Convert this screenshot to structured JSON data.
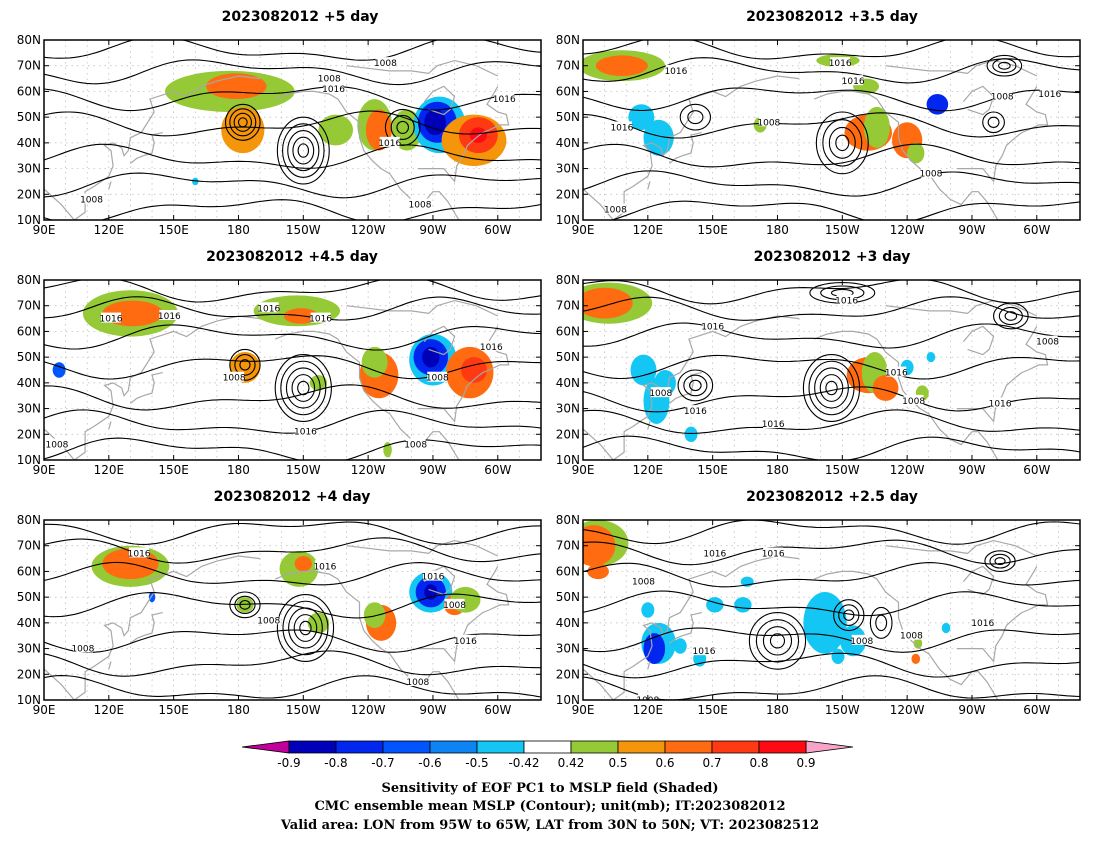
{
  "panels": [
    {
      "title": "2023082012  +5 day",
      "blobs": [
        {
          "c": "pos5",
          "lon": 176,
          "lat": 60,
          "w": 30,
          "h": 8
        },
        {
          "c": "pos7",
          "lon": 179,
          "lat": 62,
          "w": 14,
          "h": 5
        },
        {
          "c": "pos6",
          "lon": 182,
          "lat": 45,
          "w": 10,
          "h": 9
        },
        {
          "c": "pos5",
          "lon": 225,
          "lat": 45,
          "w": 8,
          "h": 6
        },
        {
          "c": "pos5",
          "lon": 243,
          "lat": 47,
          "w": 8,
          "h": 10
        },
        {
          "c": "pos7",
          "lon": 245,
          "lat": 45,
          "w": 6,
          "h": 8
        },
        {
          "c": "pos5",
          "lon": 258,
          "lat": 45,
          "w": 7,
          "h": 8
        },
        {
          "c": "neg5",
          "lon": 273,
          "lat": 47,
          "w": 12,
          "h": 11
        },
        {
          "c": "neg7",
          "lon": 272,
          "lat": 48,
          "w": 9,
          "h": 8
        },
        {
          "c": "neg9",
          "lon": 271,
          "lat": 48,
          "w": 5,
          "h": 5
        },
        {
          "c": "pos6",
          "lon": 289,
          "lat": 41,
          "w": 15,
          "h": 10
        },
        {
          "c": "pos8",
          "lon": 291,
          "lat": 43,
          "w": 9,
          "h": 7
        },
        {
          "c": "pos9",
          "lon": 291,
          "lat": 43,
          "w": 4,
          "h": 3
        },
        {
          "c": "neg5",
          "lon": 160,
          "lat": 25,
          "w": 1.5,
          "h": 1.5
        }
      ],
      "highs": [
        {
          "lon": 182,
          "lat": 48,
          "n": 4,
          "rx": 8,
          "ry": 7
        },
        {
          "lon": 210,
          "lat": 37,
          "n": 5,
          "rx": 12,
          "ry": 13
        },
        {
          "lon": 256,
          "lat": 46,
          "n": 3,
          "rx": 8,
          "ry": 7
        }
      ],
      "labels": [
        {
          "lon": 222,
          "lat": 65,
          "t": "1008"
        },
        {
          "lon": 224,
          "lat": 61,
          "t": "1016"
        },
        {
          "lon": 248,
          "lat": 71,
          "t": "1008"
        },
        {
          "lon": 250,
          "lat": 40,
          "t": "1016"
        },
        {
          "lon": 303,
          "lat": 57,
          "t": "1016"
        },
        {
          "lon": 112,
          "lat": 18,
          "t": "1008"
        },
        {
          "lon": 264,
          "lat": 16,
          "t": "1008"
        }
      ]
    },
    {
      "title": "2023082012  +3.5 day",
      "blobs": [
        {
          "c": "pos5",
          "lon": 108,
          "lat": 70,
          "w": 20,
          "h": 6
        },
        {
          "c": "pos7",
          "lon": 108,
          "lat": 70,
          "w": 12,
          "h": 4
        },
        {
          "c": "pos5",
          "lon": 208,
          "lat": 72,
          "w": 10,
          "h": 2.5
        },
        {
          "c": "neg5",
          "lon": 117,
          "lat": 50,
          "w": 6,
          "h": 5
        },
        {
          "c": "neg5",
          "lon": 125,
          "lat": 42,
          "w": 7,
          "h": 7
        },
        {
          "c": "pos5",
          "lon": 221,
          "lat": 62,
          "w": 6,
          "h": 3
        },
        {
          "c": "pos7",
          "lon": 222,
          "lat": 44,
          "w": 11,
          "h": 7
        },
        {
          "c": "pos5",
          "lon": 226,
          "lat": 46,
          "w": 6,
          "h": 8
        },
        {
          "c": "pos7",
          "lon": 240,
          "lat": 41,
          "w": 7,
          "h": 7
        },
        {
          "c": "pos5",
          "lon": 244,
          "lat": 36,
          "w": 4,
          "h": 4
        },
        {
          "c": "neg7",
          "lon": 254,
          "lat": 55,
          "w": 5,
          "h": 4
        },
        {
          "c": "pos5",
          "lon": 172,
          "lat": 47,
          "w": 3,
          "h": 3
        }
      ],
      "highs": [
        {
          "lon": 142,
          "lat": 50,
          "n": 2,
          "rx": 7,
          "ry": 5
        },
        {
          "lon": 210,
          "lat": 40,
          "n": 4,
          "rx": 12,
          "ry": 12
        },
        {
          "lon": 285,
          "lat": 70,
          "n": 3,
          "rx": 8,
          "ry": 4
        },
        {
          "lon": 280,
          "lat": 48,
          "n": 2,
          "rx": 5,
          "ry": 4
        }
      ],
      "labels": [
        {
          "lon": 133,
          "lat": 68,
          "t": "1016"
        },
        {
          "lon": 209,
          "lat": 71,
          "t": "1016"
        },
        {
          "lon": 215,
          "lat": 64,
          "t": "1016"
        },
        {
          "lon": 176,
          "lat": 48,
          "t": "1008"
        },
        {
          "lon": 108,
          "lat": 46,
          "t": "1016"
        },
        {
          "lon": 284,
          "lat": 58,
          "t": "1008"
        },
        {
          "lon": 306,
          "lat": 59,
          "t": "1016"
        },
        {
          "lon": 251,
          "lat": 28,
          "t": "1008"
        },
        {
          "lon": 105,
          "lat": 14,
          "t": "1008"
        }
      ]
    },
    {
      "title": "2023082012  +4.5 day",
      "blobs": [
        {
          "c": "pos5",
          "lon": 130,
          "lat": 67,
          "w": 22,
          "h": 9
        },
        {
          "c": "pos7",
          "lon": 131,
          "lat": 67,
          "w": 14,
          "h": 5
        },
        {
          "c": "pos5",
          "lon": 207,
          "lat": 68,
          "w": 20,
          "h": 6
        },
        {
          "c": "pos7",
          "lon": 209,
          "lat": 66,
          "w": 8,
          "h": 3
        },
        {
          "c": "pos6",
          "lon": 183,
          "lat": 46,
          "w": 7,
          "h": 6
        },
        {
          "c": "pos5",
          "lon": 217,
          "lat": 40,
          "w": 4,
          "h": 3
        },
        {
          "c": "pos7",
          "lon": 245,
          "lat": 43,
          "w": 9,
          "h": 9
        },
        {
          "c": "pos5",
          "lon": 243,
          "lat": 48,
          "w": 6,
          "h": 6
        },
        {
          "c": "neg5",
          "lon": 270,
          "lat": 49,
          "w": 11,
          "h": 10
        },
        {
          "c": "neg7",
          "lon": 269,
          "lat": 50,
          "w": 8,
          "h": 7
        },
        {
          "c": "neg9",
          "lon": 269,
          "lat": 50,
          "w": 4,
          "h": 4
        },
        {
          "c": "pos7",
          "lon": 287,
          "lat": 44,
          "w": 11,
          "h": 10
        },
        {
          "c": "pos8",
          "lon": 289,
          "lat": 45,
          "w": 6,
          "h": 5
        },
        {
          "c": "neg6",
          "lon": 97,
          "lat": 45,
          "w": 3,
          "h": 3
        },
        {
          "c": "pos5",
          "lon": 249,
          "lat": 14,
          "w": 2,
          "h": 3
        }
      ],
      "highs": [
        {
          "lon": 183,
          "lat": 47,
          "n": 3,
          "rx": 7,
          "ry": 6
        },
        {
          "lon": 210,
          "lat": 38,
          "n": 5,
          "rx": 13,
          "ry": 13
        }
      ],
      "labels": [
        {
          "lon": 148,
          "lat": 66,
          "t": "1016"
        },
        {
          "lon": 121,
          "lat": 65,
          "t": "1016"
        },
        {
          "lon": 194,
          "lat": 69,
          "t": "1016"
        },
        {
          "lon": 218,
          "lat": 65,
          "t": "1016"
        },
        {
          "lon": 178,
          "lat": 42,
          "t": "1008"
        },
        {
          "lon": 272,
          "lat": 42,
          "t": "1008"
        },
        {
          "lon": 297,
          "lat": 54,
          "t": "1016"
        },
        {
          "lon": 211,
          "lat": 21,
          "t": "1016"
        },
        {
          "lon": 262,
          "lat": 16,
          "t": "1008"
        },
        {
          "lon": 96,
          "lat": 16,
          "t": "1008"
        }
      ]
    },
    {
      "title": "2023082012  +3 day",
      "blobs": [
        {
          "c": "pos5",
          "lon": 102,
          "lat": 71,
          "w": 20,
          "h": 8
        },
        {
          "c": "pos7",
          "lon": 100,
          "lat": 71,
          "w": 13,
          "h": 6
        },
        {
          "c": "neg5",
          "lon": 118,
          "lat": 45,
          "w": 6,
          "h": 6
        },
        {
          "c": "neg5",
          "lon": 124,
          "lat": 33,
          "w": 6,
          "h": 9
        },
        {
          "c": "neg5",
          "lon": 128,
          "lat": 40,
          "w": 5,
          "h": 5
        },
        {
          "c": "neg5",
          "lon": 140,
          "lat": 20,
          "w": 3,
          "h": 3
        },
        {
          "c": "pos7",
          "lon": 222,
          "lat": 43,
          "w": 10,
          "h": 7
        },
        {
          "c": "pos5",
          "lon": 225,
          "lat": 44,
          "w": 6,
          "h": 8
        },
        {
          "c": "pos7",
          "lon": 230,
          "lat": 38,
          "w": 6,
          "h": 5
        },
        {
          "c": "neg5",
          "lon": 240,
          "lat": 46,
          "w": 3,
          "h": 3
        },
        {
          "c": "neg5",
          "lon": 251,
          "lat": 50,
          "w": 2,
          "h": 2
        },
        {
          "c": "pos5",
          "lon": 247,
          "lat": 36,
          "w": 3,
          "h": 3
        }
      ],
      "highs": [
        {
          "lon": 142,
          "lat": 39,
          "n": 3,
          "rx": 8,
          "ry": 6
        },
        {
          "lon": 205,
          "lat": 38,
          "n": 5,
          "rx": 13,
          "ry": 13
        },
        {
          "lon": 288,
          "lat": 66,
          "n": 3,
          "rx": 8,
          "ry": 5
        },
        {
          "lon": 210,
          "lat": 75,
          "n": 3,
          "rx": 15,
          "ry": 4
        }
      ],
      "labels": [
        {
          "lon": 150,
          "lat": 62,
          "t": "1016"
        },
        {
          "lon": 212,
          "lat": 72,
          "t": "1016"
        },
        {
          "lon": 126,
          "lat": 36,
          "t": "1008"
        },
        {
          "lon": 142,
          "lat": 29,
          "t": "1016"
        },
        {
          "lon": 178,
          "lat": 24,
          "t": "1016"
        },
        {
          "lon": 235,
          "lat": 44,
          "t": "1016"
        },
        {
          "lon": 243,
          "lat": 33,
          "t": "1008"
        },
        {
          "lon": 283,
          "lat": 32,
          "t": "1016"
        },
        {
          "lon": 305,
          "lat": 56,
          "t": "1008"
        }
      ]
    },
    {
      "title": "2023082012  +4 day",
      "blobs": [
        {
          "c": "pos5",
          "lon": 130,
          "lat": 62,
          "w": 18,
          "h": 8
        },
        {
          "c": "pos7",
          "lon": 130,
          "lat": 63,
          "w": 13,
          "h": 6
        },
        {
          "c": "pos5",
          "lon": 208,
          "lat": 61,
          "w": 9,
          "h": 7
        },
        {
          "c": "pos7",
          "lon": 210,
          "lat": 63,
          "w": 4,
          "h": 3
        },
        {
          "c": "pos5",
          "lon": 183,
          "lat": 47,
          "w": 4,
          "h": 3
        },
        {
          "c": "pos5",
          "lon": 217,
          "lat": 40,
          "w": 5,
          "h": 4
        },
        {
          "c": "pos7",
          "lon": 246,
          "lat": 40,
          "w": 7,
          "h": 7
        },
        {
          "c": "pos5",
          "lon": 243,
          "lat": 43,
          "w": 5,
          "h": 5
        },
        {
          "c": "neg5",
          "lon": 269,
          "lat": 52,
          "w": 10,
          "h": 8
        },
        {
          "c": "neg7",
          "lon": 269,
          "lat": 52,
          "w": 7,
          "h": 6
        },
        {
          "c": "neg9",
          "lon": 269,
          "lat": 52,
          "w": 3,
          "h": 3
        },
        {
          "c": "pos7",
          "lon": 280,
          "lat": 47,
          "w": 5,
          "h": 4
        },
        {
          "c": "pos5",
          "lon": 285,
          "lat": 49,
          "w": 7,
          "h": 5
        },
        {
          "c": "neg6",
          "lon": 140,
          "lat": 50,
          "w": 1.5,
          "h": 2
        }
      ],
      "highs": [
        {
          "lon": 183,
          "lat": 47,
          "n": 3,
          "rx": 7,
          "ry": 5
        },
        {
          "lon": 211,
          "lat": 38,
          "n": 5,
          "rx": 13,
          "ry": 13
        }
      ],
      "labels": [
        {
          "lon": 134,
          "lat": 67,
          "t": "1016"
        },
        {
          "lon": 220,
          "lat": 62,
          "t": "1016"
        },
        {
          "lon": 270,
          "lat": 58,
          "t": "1016"
        },
        {
          "lon": 194,
          "lat": 41,
          "t": "1008"
        },
        {
          "lon": 280,
          "lat": 47,
          "t": "1008"
        },
        {
          "lon": 108,
          "lat": 30,
          "t": "1008"
        },
        {
          "lon": 285,
          "lat": 33,
          "t": "1016"
        },
        {
          "lon": 263,
          "lat": 17,
          "t": "1008"
        }
      ]
    },
    {
      "title": "2023082012  +2.5 day",
      "blobs": [
        {
          "c": "pos5",
          "lon": 97,
          "lat": 71,
          "w": 14,
          "h": 9
        },
        {
          "c": "pos7",
          "lon": 95,
          "lat": 70,
          "w": 10,
          "h": 8
        },
        {
          "c": "pos7",
          "lon": 97,
          "lat": 60,
          "w": 5,
          "h": 3
        },
        {
          "c": "neg5",
          "lon": 120,
          "lat": 45,
          "w": 3,
          "h": 3
        },
        {
          "c": "neg5",
          "lon": 125,
          "lat": 32,
          "w": 8,
          "h": 8
        },
        {
          "c": "neg7",
          "lon": 123,
          "lat": 30,
          "w": 5,
          "h": 6
        },
        {
          "c": "neg5",
          "lon": 135,
          "lat": 31,
          "w": 3,
          "h": 3
        },
        {
          "c": "neg5",
          "lon": 144,
          "lat": 26,
          "w": 3,
          "h": 3
        },
        {
          "c": "neg5",
          "lon": 151,
          "lat": 47,
          "w": 4,
          "h": 3
        },
        {
          "c": "neg5",
          "lon": 164,
          "lat": 47,
          "w": 4,
          "h": 3
        },
        {
          "c": "neg5",
          "lon": 166,
          "lat": 56,
          "w": 3,
          "h": 2
        },
        {
          "c": "neg5",
          "lon": 202,
          "lat": 40,
          "w": 10,
          "h": 12
        },
        {
          "c": "neg5",
          "lon": 215,
          "lat": 33,
          "w": 6,
          "h": 6
        },
        {
          "c": "neg5",
          "lon": 208,
          "lat": 27,
          "w": 3,
          "h": 3
        },
        {
          "c": "neg5",
          "lon": 258,
          "lat": 38,
          "w": 2,
          "h": 2
        },
        {
          "c": "pos7",
          "lon": 244,
          "lat": 26,
          "w": 2,
          "h": 2
        },
        {
          "c": "pos5",
          "lon": 245,
          "lat": 32,
          "w": 2,
          "h": 2
        }
      ],
      "highs": [
        {
          "lon": 180,
          "lat": 33,
          "n": 4,
          "rx": 13,
          "ry": 11
        },
        {
          "lon": 213,
          "lat": 43,
          "n": 3,
          "rx": 7,
          "ry": 6
        },
        {
          "lon": 283,
          "lat": 64,
          "n": 3,
          "rx": 7,
          "ry": 4
        },
        {
          "lon": 228,
          "lat": 40,
          "n": 2,
          "rx": 5,
          "ry": 6
        }
      ],
      "labels": [
        {
          "lon": 151,
          "lat": 67,
          "t": "1016"
        },
        {
          "lon": 178,
          "lat": 67,
          "t": "1016"
        },
        {
          "lon": 118,
          "lat": 56,
          "t": "1008"
        },
        {
          "lon": 146,
          "lat": 29,
          "t": "1016"
        },
        {
          "lon": 219,
          "lat": 33,
          "t": "1008"
        },
        {
          "lon": 242,
          "lat": 35,
          "t": "1008"
        },
        {
          "lon": 275,
          "lat": 40,
          "t": "1016"
        },
        {
          "lon": 120,
          "lat": 10,
          "t": "1008"
        }
      ]
    }
  ],
  "axes": {
    "lon_ticks": [
      "90E",
      "120E",
      "150E",
      "180",
      "150W",
      "120W",
      "90W",
      "60W"
    ],
    "lat_ticks": [
      "10N",
      "20N",
      "30N",
      "40N",
      "50N",
      "60N",
      "70N",
      "80N"
    ],
    "lon_range": [
      90,
      320
    ],
    "lat_range": [
      10,
      80
    ]
  },
  "colorbar": {
    "ticks": [
      "-0.9",
      "-0.8",
      "-0.7",
      "-0.6",
      "-0.5",
      "-0.42",
      "0.42",
      "0.5",
      "0.6",
      "0.7",
      "0.8",
      "0.9"
    ],
    "colors": [
      "#c0009a",
      "#0000b8",
      "#0026f0",
      "#0055ff",
      "#0c84f4",
      "#13c6f4",
      "#ffffff",
      "#95c935",
      "#f5950a",
      "#ff6b10",
      "#ff3a12",
      "#ff0a12",
      "#f7a4c8"
    ]
  },
  "caption": {
    "line1": "Sensitivity of EOF PC1 to MSLP field (Shaded)",
    "line2": "CMC ensemble mean MSLP (Contour); unit(mb); IT:2023082012",
    "line3": "Valid area: LON from 95W to 65W, LAT from 30N to 50N; VT: 2023082512"
  }
}
